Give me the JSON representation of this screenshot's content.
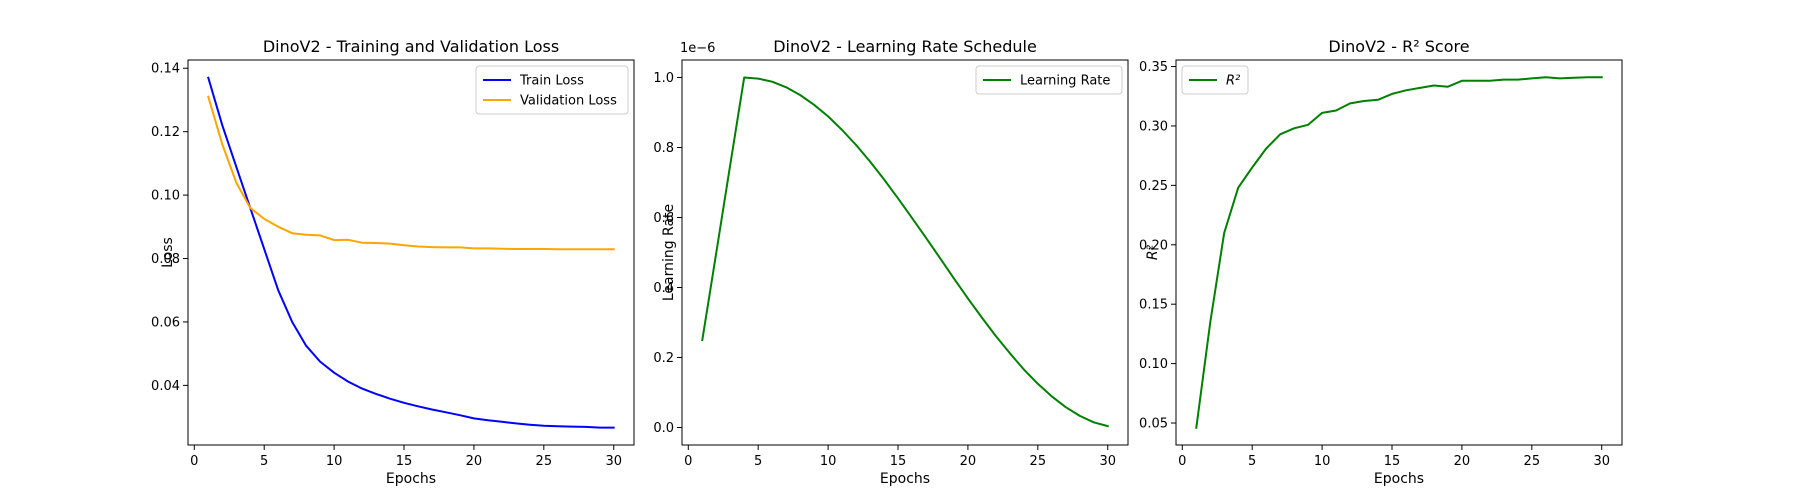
{
  "chart_data": [
    {
      "type": "line",
      "title": "DinoV2 - Training and Validation Loss",
      "xlabel": "Epochs",
      "ylabel": "Loss",
      "xlim": [
        -0.45,
        31.45
      ],
      "ylim": [
        0.0212,
        0.1426
      ],
      "xticks": [
        0,
        5,
        10,
        15,
        20,
        25,
        30
      ],
      "yticks": [
        0.04,
        0.06,
        0.08,
        0.1,
        0.12,
        0.14
      ],
      "ytick_labels": [
        "0.04",
        "0.06",
        "0.08",
        "0.10",
        "0.12",
        "0.14"
      ],
      "legend": "upper right",
      "x": [
        1,
        2,
        3,
        4,
        5,
        6,
        7,
        8,
        9,
        10,
        11,
        12,
        13,
        14,
        15,
        16,
        17,
        18,
        19,
        20,
        21,
        22,
        23,
        24,
        25,
        26,
        27,
        28,
        29,
        30
      ],
      "series": [
        {
          "name": "Train Loss",
          "color": "#0000ff",
          "values": [
            0.137,
            0.122,
            0.109,
            0.096,
            0.083,
            0.07,
            0.06,
            0.0525,
            0.0475,
            0.044,
            0.0412,
            0.039,
            0.0373,
            0.0358,
            0.0345,
            0.0334,
            0.0324,
            0.0315,
            0.0306,
            0.0296,
            0.029,
            0.0285,
            0.028,
            0.0276,
            0.0273,
            0.0271,
            0.027,
            0.0269,
            0.0267,
            0.0267
          ]
        },
        {
          "name": "Validation Loss",
          "color": "#ffa500",
          "values": [
            0.131,
            0.116,
            0.104,
            0.096,
            0.0925,
            0.09,
            0.088,
            0.0875,
            0.0873,
            0.0858,
            0.0859,
            0.085,
            0.0849,
            0.0847,
            0.0842,
            0.0838,
            0.0836,
            0.0835,
            0.0835,
            0.0832,
            0.0832,
            0.0831,
            0.083,
            0.083,
            0.083,
            0.0829,
            0.0829,
            0.0829,
            0.0829,
            0.0829
          ]
        }
      ]
    },
    {
      "type": "line",
      "title": "DinoV2 - Learning Rate Schedule",
      "xlabel": "Epochs",
      "ylabel": "Learning Rate",
      "offset_text": "1e−6",
      "xlim": [
        -0.45,
        31.45
      ],
      "ylim": [
        -0.05,
        1.05
      ],
      "xticks": [
        0,
        5,
        10,
        15,
        20,
        25,
        30
      ],
      "yticks": [
        0.0,
        0.2,
        0.4,
        0.6,
        0.8,
        1.0
      ],
      "ytick_labels": [
        "0.0",
        "0.2",
        "0.4",
        "0.6",
        "0.8",
        "1.0"
      ],
      "legend": "upper right",
      "x": [
        1,
        2,
        3,
        4,
        5,
        6,
        7,
        8,
        9,
        10,
        11,
        12,
        13,
        14,
        15,
        16,
        17,
        18,
        19,
        20,
        21,
        22,
        23,
        24,
        25,
        26,
        27,
        28,
        29,
        30
      ],
      "series": [
        {
          "name": "Learning Rate",
          "color": "#008000",
          "values": [
            0.25,
            0.5,
            0.75,
            1.0,
            0.997,
            0.988,
            0.972,
            0.95,
            0.922,
            0.889,
            0.85,
            0.807,
            0.76,
            0.709,
            0.655,
            0.599,
            0.542,
            0.484,
            0.426,
            0.369,
            0.314,
            0.261,
            0.212,
            0.166,
            0.125,
            0.089,
            0.058,
            0.033,
            0.015,
            0.004
          ]
        }
      ]
    },
    {
      "type": "line",
      "title": "DinoV2 - R² Score",
      "xlabel": "Epochs",
      "ylabel": "R²",
      "xlim": [
        -0.45,
        31.45
      ],
      "ylim": [
        0.0315,
        0.3555
      ],
      "xticks": [
        0,
        5,
        10,
        15,
        20,
        25,
        30
      ],
      "yticks": [
        0.05,
        0.1,
        0.15,
        0.2,
        0.25,
        0.3,
        0.35
      ],
      "ytick_labels": [
        "0.05",
        "0.10",
        "0.15",
        "0.20",
        "0.25",
        "0.30",
        "0.35"
      ],
      "legend": "upper left",
      "x": [
        1,
        2,
        3,
        4,
        5,
        6,
        7,
        8,
        9,
        10,
        11,
        12,
        13,
        14,
        15,
        16,
        17,
        18,
        19,
        20,
        21,
        22,
        23,
        24,
        25,
        26,
        27,
        28,
        29,
        30
      ],
      "series": [
        {
          "name": "R²",
          "color": "#008000",
          "values": [
            0.046,
            0.135,
            0.21,
            0.248,
            0.265,
            0.281,
            0.293,
            0.298,
            0.301,
            0.311,
            0.313,
            0.319,
            0.321,
            0.322,
            0.327,
            0.33,
            0.332,
            0.334,
            0.333,
            0.338,
            0.338,
            0.338,
            0.339,
            0.339,
            0.34,
            0.341,
            0.34,
            0.3405,
            0.341,
            0.341
          ]
        }
      ]
    }
  ]
}
